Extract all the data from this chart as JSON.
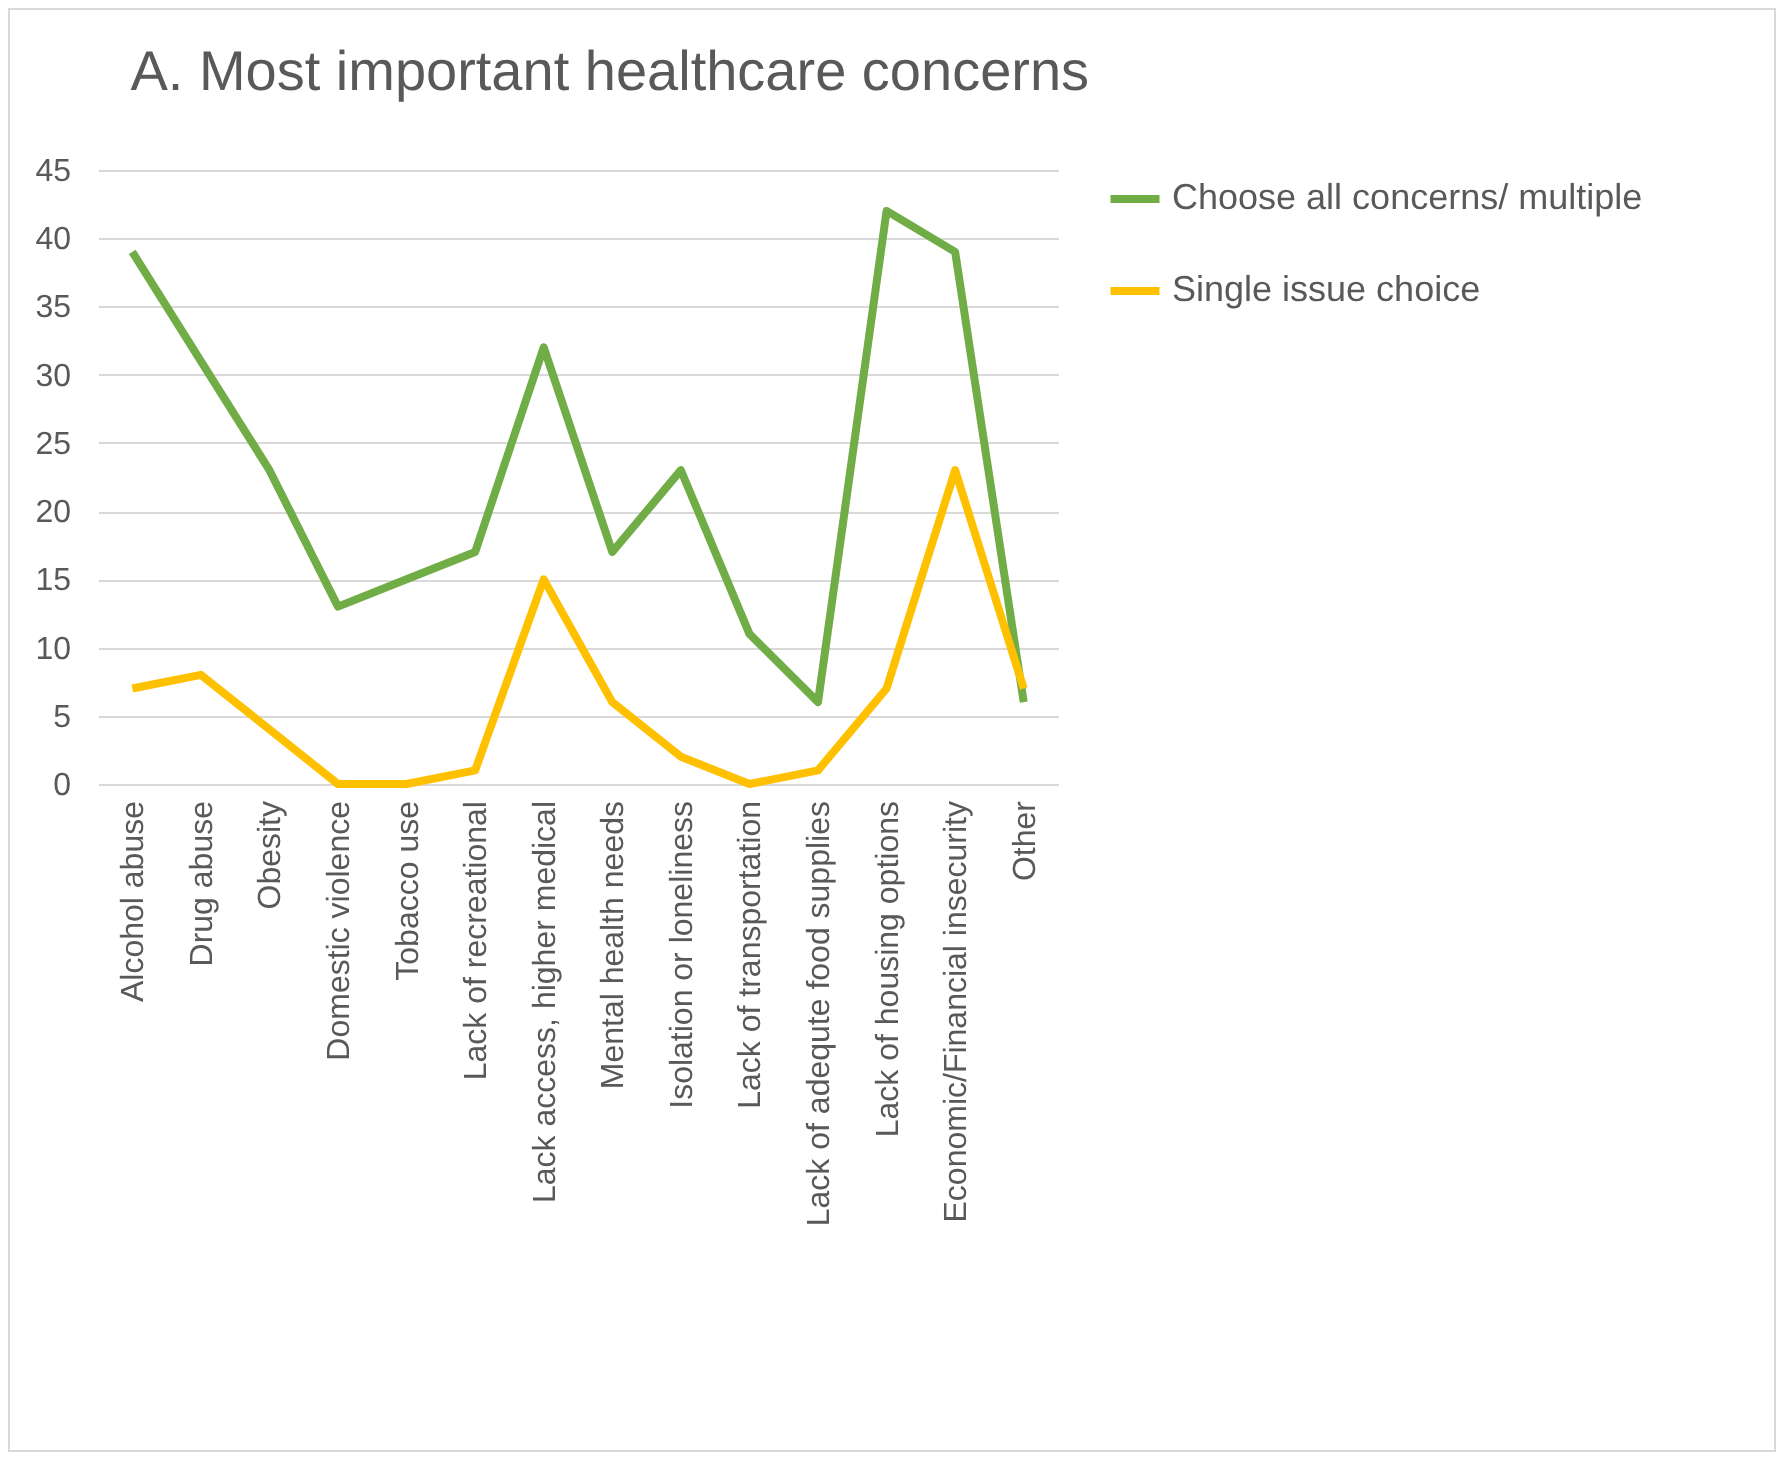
{
  "chart_data": {
    "type": "line",
    "title": "A.    Most important healthcare concerns",
    "categories": [
      "Alcohol abuse",
      "Drug abuse",
      "Obesity",
      "Domestic violence",
      "Tobacco use",
      "Lack of recreational",
      "Lack access, higher medical",
      "Mental health needs",
      "Isolation or loneliness",
      "Lack of transportation",
      "Lack of adequte food supplies",
      "Lack of housing options",
      "Economic/Financial insecurity",
      "Other"
    ],
    "series": [
      {
        "name": "Choose all concerns/ multiple",
        "color": "#70ad47",
        "values": [
          39,
          31,
          23,
          13,
          15,
          17,
          32,
          17,
          23,
          11,
          6,
          42,
          39,
          6
        ]
      },
      {
        "name": "Single issue choice",
        "color": "#ffc000",
        "values": [
          7,
          8,
          4,
          0,
          0,
          1,
          15,
          6,
          2,
          0,
          1,
          7,
          23,
          7
        ]
      }
    ],
    "ylim": [
      0,
      45
    ],
    "yticks": [
      0,
      5,
      10,
      15,
      20,
      25,
      30,
      35,
      40,
      45
    ],
    "grid": "y",
    "legend": "right",
    "marker": "none",
    "line_style": "solid"
  }
}
